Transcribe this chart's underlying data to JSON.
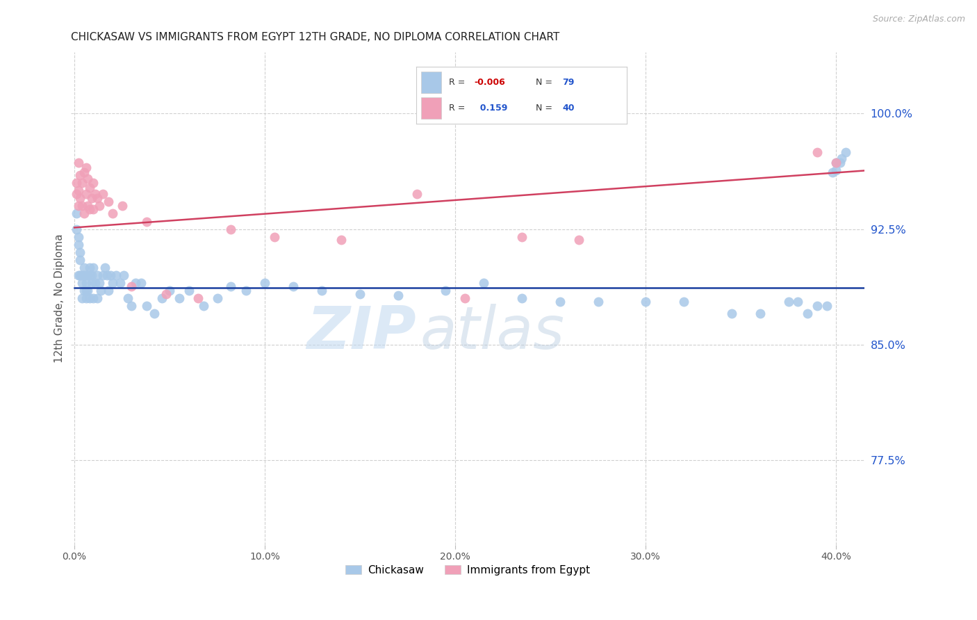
{
  "title": "CHICKASAW VS IMMIGRANTS FROM EGYPT 12TH GRADE, NO DIPLOMA CORRELATION CHART",
  "source": "Source: ZipAtlas.com",
  "ylabel": "12th Grade, No Diploma",
  "ytick_labels": [
    "100.0%",
    "92.5%",
    "85.0%",
    "77.5%"
  ],
  "ytick_vals": [
    1.0,
    0.925,
    0.85,
    0.775
  ],
  "xtick_labels": [
    "0.0%",
    "10.0%",
    "20.0%",
    "30.0%",
    "40.0%"
  ],
  "xtick_vals": [
    0.0,
    0.1,
    0.2,
    0.3,
    0.4
  ],
  "xlim": [
    -0.002,
    0.415
  ],
  "ylim": [
    0.72,
    1.04
  ],
  "legend_r_blue": "-0.006",
  "legend_n_blue": "79",
  "legend_r_pink": "0.159",
  "legend_n_pink": "40",
  "watermark_zip": "ZIP",
  "watermark_atlas": "atlas",
  "blue_color": "#a8c8e8",
  "pink_color": "#f0a0b8",
  "trendline_blue_color": "#1a3fa0",
  "trendline_pink_color": "#d04060",
  "blue_x": [
    0.001,
    0.001,
    0.002,
    0.002,
    0.002,
    0.003,
    0.003,
    0.003,
    0.004,
    0.004,
    0.004,
    0.005,
    0.005,
    0.005,
    0.006,
    0.006,
    0.006,
    0.007,
    0.007,
    0.008,
    0.008,
    0.008,
    0.009,
    0.009,
    0.01,
    0.01,
    0.011,
    0.012,
    0.012,
    0.013,
    0.014,
    0.015,
    0.016,
    0.017,
    0.018,
    0.019,
    0.02,
    0.022,
    0.024,
    0.026,
    0.028,
    0.03,
    0.032,
    0.035,
    0.038,
    0.042,
    0.046,
    0.05,
    0.055,
    0.06,
    0.068,
    0.075,
    0.082,
    0.09,
    0.1,
    0.115,
    0.13,
    0.15,
    0.17,
    0.195,
    0.215,
    0.235,
    0.255,
    0.275,
    0.3,
    0.32,
    0.345,
    0.36,
    0.375,
    0.38,
    0.385,
    0.39,
    0.395,
    0.398,
    0.4,
    0.4,
    0.402,
    0.403,
    0.405
  ],
  "blue_y": [
    0.935,
    0.925,
    0.92,
    0.915,
    0.895,
    0.91,
    0.905,
    0.895,
    0.895,
    0.89,
    0.88,
    0.9,
    0.895,
    0.885,
    0.89,
    0.885,
    0.88,
    0.895,
    0.885,
    0.9,
    0.895,
    0.88,
    0.895,
    0.89,
    0.9,
    0.88,
    0.89,
    0.895,
    0.88,
    0.89,
    0.885,
    0.895,
    0.9,
    0.895,
    0.885,
    0.895,
    0.89,
    0.895,
    0.89,
    0.895,
    0.88,
    0.875,
    0.89,
    0.89,
    0.875,
    0.87,
    0.88,
    0.885,
    0.88,
    0.885,
    0.875,
    0.88,
    0.888,
    0.885,
    0.89,
    0.888,
    0.885,
    0.883,
    0.882,
    0.885,
    0.89,
    0.88,
    0.878,
    0.878,
    0.878,
    0.878,
    0.87,
    0.87,
    0.878,
    0.878,
    0.87,
    0.875,
    0.875,
    0.962,
    0.963,
    0.968,
    0.968,
    0.971,
    0.975
  ],
  "pink_x": [
    0.001,
    0.001,
    0.002,
    0.002,
    0.002,
    0.003,
    0.003,
    0.004,
    0.004,
    0.005,
    0.005,
    0.006,
    0.006,
    0.007,
    0.007,
    0.008,
    0.008,
    0.009,
    0.01,
    0.01,
    0.011,
    0.012,
    0.013,
    0.015,
    0.018,
    0.02,
    0.025,
    0.03,
    0.038,
    0.048,
    0.065,
    0.082,
    0.105,
    0.14,
    0.18,
    0.205,
    0.235,
    0.265,
    0.39,
    0.4
  ],
  "pink_y": [
    0.955,
    0.948,
    0.968,
    0.95,
    0.94,
    0.96,
    0.945,
    0.955,
    0.94,
    0.962,
    0.935,
    0.965,
    0.948,
    0.958,
    0.94,
    0.952,
    0.938,
    0.945,
    0.955,
    0.938,
    0.948,
    0.945,
    0.94,
    0.948,
    0.943,
    0.935,
    0.94,
    0.888,
    0.93,
    0.883,
    0.88,
    0.925,
    0.92,
    0.918,
    0.948,
    0.88,
    0.92,
    0.918,
    0.975,
    0.968
  ],
  "blue_trendline_x": [
    0.0,
    0.415
  ],
  "blue_trendline_y": [
    0.887,
    0.887
  ],
  "pink_trendline_x": [
    0.0,
    0.415
  ],
  "pink_trendline_y": [
    0.926,
    0.963
  ],
  "grid_color": "#d0d0d0",
  "background_color": "#ffffff",
  "title_fontsize": 11,
  "axis_label_color": "#555555",
  "right_tick_color": "#2255cc",
  "legend_bottom_label1": "Chickasaw",
  "legend_bottom_label2": "Immigrants from Egypt",
  "legend_r_color_blue": "#cc0000",
  "legend_r_color_pink": "#2255cc",
  "legend_n_color": "#2255cc"
}
